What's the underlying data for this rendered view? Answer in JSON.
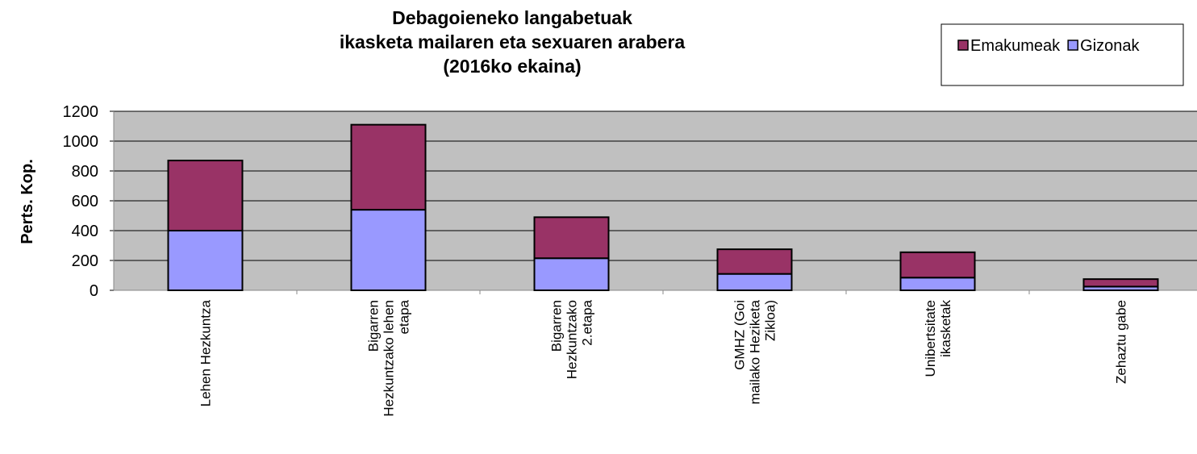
{
  "chart_data": {
    "type": "stacked_bar",
    "title": [
      "Debagoieneko langabetuak",
      "ikasketa mailaren eta sexuaren arabera",
      "(2016ko ekaina)"
    ],
    "y_label": "Perts. Kop.",
    "categories": [
      "Lehen Hezkuntza",
      "Bigarren\nHezkuntzako lehen\netapa",
      "Bigarren\nHezkuntzako\n2.etapa",
      "GMHZ (Goi\nmailako Heziketa\nZikloa)",
      "Unibertsitate\nikasketak",
      "Zehaztu gabe"
    ],
    "series": [
      {
        "name": "Gizonak",
        "color": "#9999ff",
        "values": [
          400,
          540,
          215,
          110,
          85,
          25
        ]
      },
      {
        "name": "Emakumeak",
        "color": "#993366",
        "values": [
          470,
          570,
          275,
          165,
          170,
          50
        ]
      }
    ],
    "ylim": [
      0,
      1200
    ],
    "yticks": [
      0,
      200,
      400,
      600,
      800,
      1000,
      1200
    ],
    "grid": true,
    "legend": "top-right"
  }
}
